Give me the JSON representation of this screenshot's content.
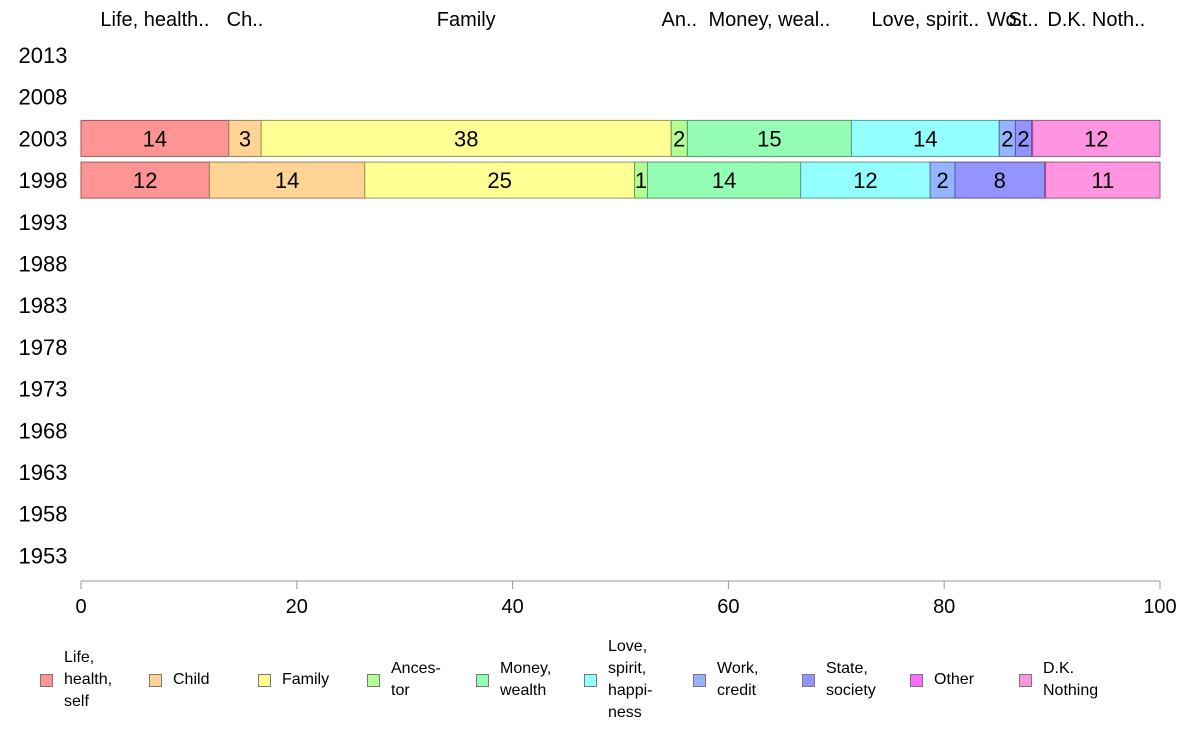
{
  "chart_data": {
    "type": "bar",
    "orientation": "horizontal",
    "stacked": true,
    "years": [
      "2013",
      "2008",
      "2003",
      "1998",
      "1993",
      "1988",
      "1983",
      "1978",
      "1973",
      "1968",
      "1963",
      "1958",
      "1953"
    ],
    "categories": [
      "Life, health, self",
      "Child",
      "Family",
      "Ancestor",
      "Money, wealth",
      "Love, spirit, happiness",
      "Work, credit",
      "State, society",
      "Other",
      "D.K. Nothing"
    ],
    "top_labels": [
      "Life, health..",
      "Ch..",
      "Family",
      "An..",
      "Money, weal..",
      "Love, spirit..",
      "Wo..",
      "St..",
      "",
      "D.K. Noth.."
    ],
    "legend_labels": [
      "Life,\nhealth,\nself",
      "Child",
      "Family",
      "Ances-\ntor",
      "Money,\nwealth",
      "Love,\nspirit,\nhappi-\nness",
      "Work,\ncredit",
      "State,\nsociety",
      "Other",
      "D.K.\nNothing"
    ],
    "colors": [
      "#ff9494",
      "#ffd494",
      "#ffff94",
      "#b4ff94",
      "#94ffb4",
      "#94ffff",
      "#94b4ff",
      "#9494ff",
      "#ff6bff",
      "#ff94e0"
    ],
    "series": [
      {
        "year": "2003",
        "values": [
          13.7,
          3.0,
          38.0,
          1.5,
          15.2,
          13.7,
          1.5,
          1.5,
          0.1,
          11.8
        ],
        "labels": [
          "14",
          "3",
          "38",
          "2",
          "15",
          "14",
          "2",
          "2",
          "",
          "12"
        ]
      },
      {
        "year": "1998",
        "values": [
          11.9,
          14.4,
          25.0,
          1.2,
          14.2,
          12.0,
          2.3,
          8.3,
          0.1,
          10.6
        ],
        "labels": [
          "12",
          "14",
          "25",
          "1",
          "14",
          "12",
          "2",
          "8",
          "",
          "11"
        ]
      }
    ],
    "x_ticks": [
      "0",
      "20",
      "40",
      "60",
      "80",
      "100"
    ],
    "xlim": [
      0,
      100
    ],
    "xlabel": "",
    "ylabel": "",
    "title": "",
    "grid": false,
    "legend_position": "bottom"
  }
}
